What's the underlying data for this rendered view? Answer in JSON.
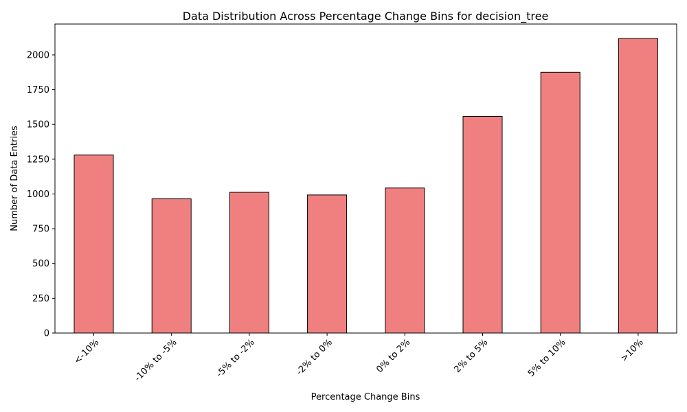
{
  "chart_data": {
    "type": "bar",
    "title": "Data Distribution Across Percentage Change Bins for decision_tree",
    "xlabel": "Percentage Change Bins",
    "ylabel": "Number of Data Entries",
    "categories": [
      "<-10%",
      "-10% to -5%",
      "-5% to -2%",
      "-2% to 0%",
      "0% to 2%",
      "2% to 5%",
      "5% to 10%",
      ">10%"
    ],
    "values": [
      1280,
      965,
      1012,
      993,
      1043,
      1558,
      1875,
      2118
    ],
    "ylim": [
      0,
      2222
    ],
    "yticks": [
      0,
      250,
      500,
      750,
      1000,
      1250,
      1500,
      1750,
      2000
    ],
    "bar_color": "#f08080",
    "edge_color": "#000000",
    "grid": false,
    "legend": "none"
  }
}
